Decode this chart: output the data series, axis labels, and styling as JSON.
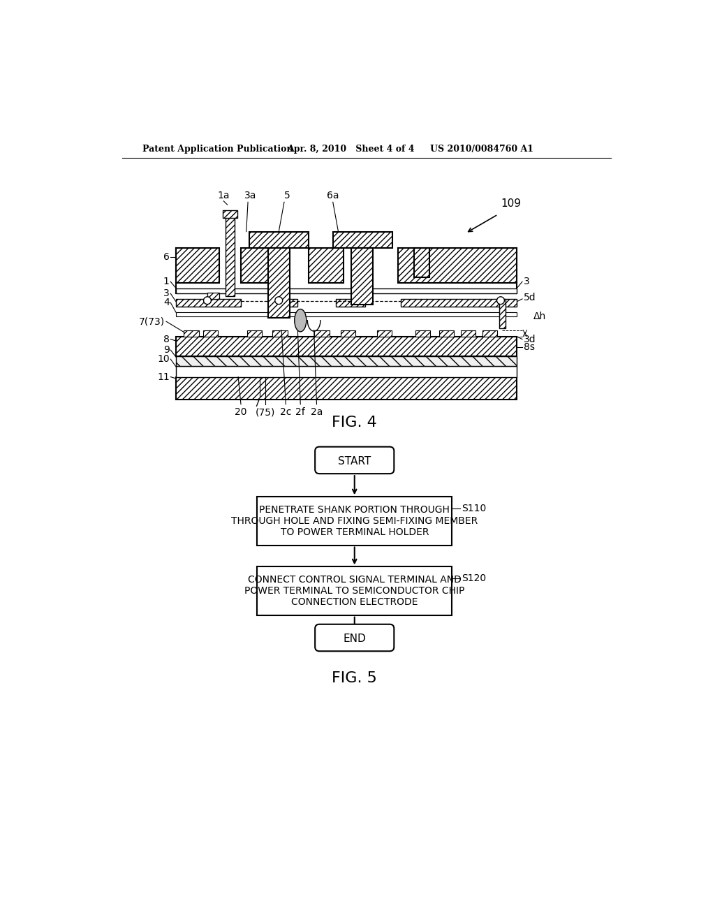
{
  "header_left": "Patent Application Publication",
  "header_mid": "Apr. 8, 2010   Sheet 4 of 4",
  "header_right": "US 2010/0084760 A1",
  "fig4_label": "FIG. 4",
  "fig5_label": "FIG. 5",
  "flowchart_start": "START",
  "flowchart_end": "END",
  "step1_label": "S110",
  "step1_text": "PENETRATE SHANK PORTION THROUGH\nTHROUGH HOLE AND FIXING SEMI-FIXING MEMBER\nTO POWER TERMINAL HOLDER",
  "step2_label": "S120",
  "step2_text": "CONNECT CONTROL SIGNAL TERMINAL AND\nPOWER TERMINAL TO SEMICONDUCTOR CHIP\nCONNECTION ELECTRODE",
  "bg_color": "#ffffff"
}
